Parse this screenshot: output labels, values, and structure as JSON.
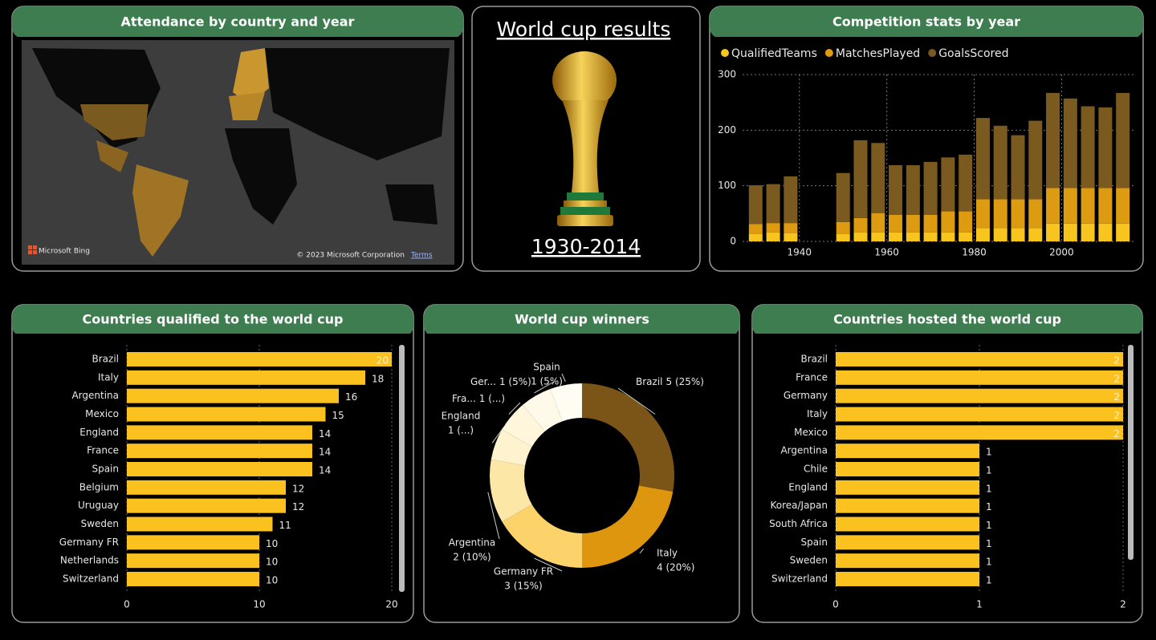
{
  "map": {
    "title": "Attendance by country and year",
    "provider": "Microsoft Bing",
    "copyright": "© 2023 Microsoft Corporation",
    "terms": "Terms"
  },
  "card": {
    "title": "World cup results",
    "subtitle": "1930-2014"
  },
  "chart_data": [
    {
      "type": "stacked",
      "title": "Competition stats by year",
      "x": [
        1930,
        1934,
        1938,
        1950,
        1954,
        1958,
        1962,
        1966,
        1970,
        1974,
        1978,
        1982,
        1986,
        1990,
        1994,
        1998,
        2002,
        2006,
        2010,
        2014
      ],
      "series": [
        {
          "name": "QualifiedTeams",
          "color": "#f7c51e",
          "values": [
            13,
            16,
            15,
            13,
            16,
            16,
            16,
            16,
            16,
            16,
            16,
            24,
            24,
            24,
            24,
            32,
            32,
            32,
            32,
            32
          ]
        },
        {
          "name": "MatchesPlayed",
          "color": "#dd9b12",
          "values": [
            18,
            17,
            18,
            22,
            26,
            35,
            32,
            32,
            32,
            38,
            38,
            52,
            52,
            52,
            52,
            64,
            64,
            64,
            64,
            64
          ]
        },
        {
          "name": "GoalsScored",
          "color": "#7b5a1f",
          "values": [
            70,
            70,
            84,
            88,
            140,
            126,
            89,
            89,
            95,
            97,
            102,
            146,
            132,
            115,
            141,
            171,
            161,
            147,
            145,
            171
          ]
        }
      ],
      "xlim": [
        1927,
        2017
      ],
      "xticks": [
        1940,
        1960,
        1980,
        2000
      ],
      "ylim": [
        0,
        300
      ],
      "yticks": [
        0,
        100,
        200,
        300
      ],
      "grid": true,
      "legend": "top-left"
    },
    {
      "type": "hbar",
      "title": "Countries qualified to the world cup",
      "categories": [
        "Brazil",
        "Italy",
        "Argentina",
        "Mexico",
        "England",
        "France",
        "Spain",
        "Belgium",
        "Uruguay",
        "Sweden",
        "Germany FR",
        "Netherlands",
        "Switzerland"
      ],
      "values": [
        20,
        18,
        16,
        15,
        14,
        14,
        14,
        12,
        12,
        11,
        10,
        10,
        10
      ],
      "color": "#fbc21f",
      "xlim": [
        0,
        20
      ],
      "xticks": [
        0,
        10,
        20
      ],
      "grid": true
    },
    {
      "type": "donut",
      "title": "World cup winners",
      "categories": [
        "Brazil",
        "Italy",
        "Germany FR",
        "Argentina",
        "England",
        "Fra...",
        "Ger...",
        "Spain"
      ],
      "values": [
        5,
        4,
        3,
        2,
        1,
        1,
        1,
        1
      ],
      "value_labels": [
        "5 (25%)",
        "4 (20%)",
        "3 (15%)",
        "2 (10%)",
        "1 (...)",
        "1 (...)",
        "1 (5%)",
        "1 (5%)"
      ],
      "colors": [
        "#7b5418",
        "#de960f",
        "#fbd36a",
        "#fde7a6",
        "#fff3cf",
        "#fff6dc",
        "#fff9e9",
        "#fffcf3"
      ]
    },
    {
      "type": "hbar",
      "title": "Countries hosted the world cup",
      "categories": [
        "Brazil",
        "France",
        "Germany",
        "Italy",
        "Mexico",
        "Argentina",
        "Chile",
        "England",
        "Korea/Japan",
        "South Africa",
        "Spain",
        "Sweden",
        "Switzerland"
      ],
      "values": [
        2,
        2,
        2,
        2,
        2,
        1,
        1,
        1,
        1,
        1,
        1,
        1,
        1
      ],
      "color": "#fbc21f",
      "xlim": [
        0,
        2
      ],
      "xticks": [
        0,
        1,
        2
      ],
      "grid": true
    }
  ]
}
